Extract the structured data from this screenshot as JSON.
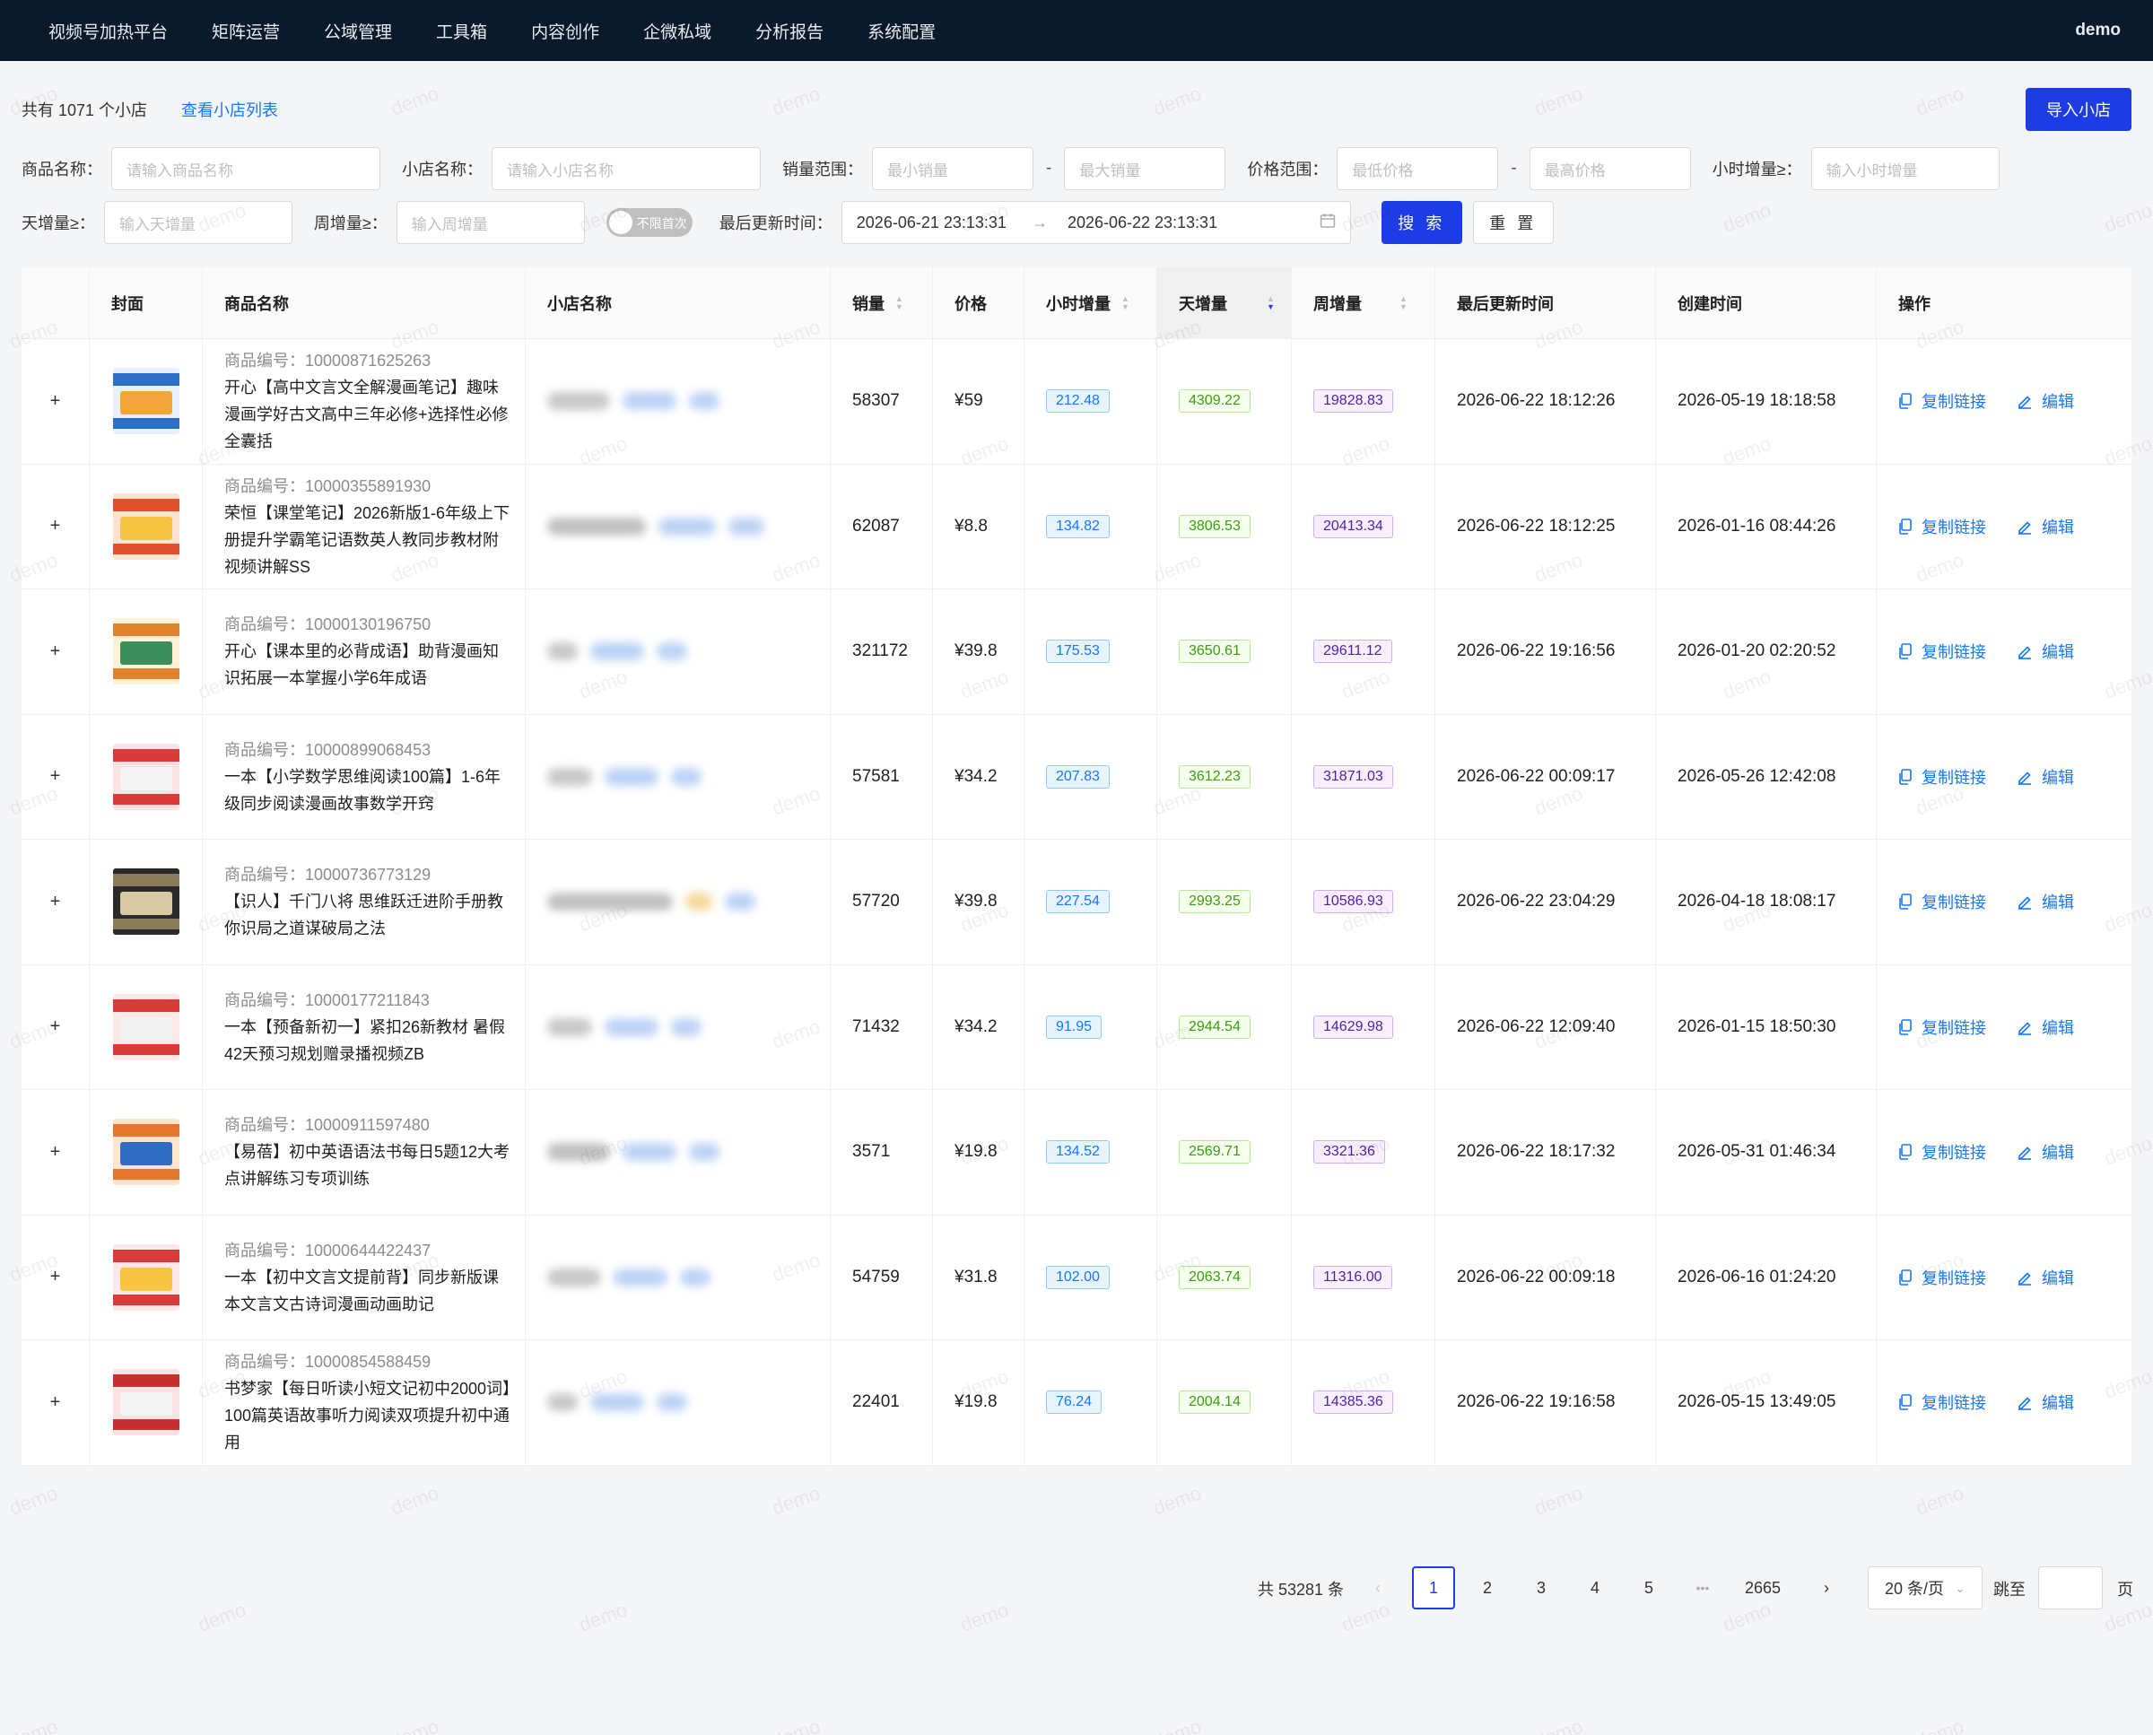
{
  "nav": {
    "items": [
      "视频号加热平台",
      "矩阵运营",
      "公域管理",
      "工具箱",
      "内容创作",
      "企微私域",
      "分析报告",
      "系统配置"
    ],
    "user": "demo"
  },
  "summary": {
    "count": "共有 1071 个小店",
    "link": "查看小店列表",
    "import_button": "导入小店"
  },
  "filters": {
    "product_name_label": "商品名称：",
    "product_name_placeholder": "请输入商品名称",
    "shop_name_label": "小店名称：",
    "shop_name_placeholder": "请输入小店名称",
    "sales_label": "销量范围：",
    "sales_min_placeholder": "最小销量",
    "sales_max_placeholder": "最大销量",
    "price_label": "价格范围：",
    "price_min_placeholder": "最低价格",
    "price_max_placeholder": "最高价格",
    "hour_label": "小时增量≥：",
    "hour_placeholder": "输入小时增量",
    "day_label": "天增量≥：",
    "day_placeholder": "输入天增量",
    "week_label": "周增量≥：",
    "week_placeholder": "输入周增量",
    "toggle_label": "不限首次",
    "update_label": "最后更新时间：",
    "date_start": "2026-06-21 23:13:31",
    "date_end": "2026-06-22 23:13:31",
    "date_arrow": "→",
    "search_button": "搜 索",
    "reset_button": "重 置"
  },
  "table": {
    "headers": {
      "cover": "封面",
      "product": "商品名称",
      "shop": "小店名称",
      "sales": "销量",
      "price": "价格",
      "hour": "小时增量",
      "day": "天增量",
      "week": "周增量",
      "updated": "最后更新时间",
      "created": "创建时间",
      "actions": "操作"
    },
    "action_copy": "复制链接",
    "action_edit": "编辑",
    "rows": [
      {
        "code": "商品编号：10000871625263",
        "name": "开心【高中文言文全解漫画笔记】趣味漫画学好古文高中三年必修+选择性必修全囊括",
        "sales": "58307",
        "price": "¥59",
        "hour": "212.48",
        "day": "4309.22",
        "week": "19828.83",
        "updated": "2026-06-22 18:12:26",
        "created": "2026-05-19 18:18:58"
      },
      {
        "code": "商品编号：10000355891930",
        "name": "荣恒【课堂笔记】2026新版1-6年级上下册提升学霸笔记语数英人教同步教材附视频讲解SS",
        "sales": "62087",
        "price": "¥8.8",
        "hour": "134.82",
        "day": "3806.53",
        "week": "20413.34",
        "updated": "2026-06-22 18:12:25",
        "created": "2026-01-16 08:44:26"
      },
      {
        "code": "商品编号：10000130196750",
        "name": "开心【课本里的必背成语】助背漫画知识拓展一本掌握小学6年成语",
        "sales": "321172",
        "price": "¥39.8",
        "hour": "175.53",
        "day": "3650.61",
        "week": "29611.12",
        "updated": "2026-06-22 19:16:56",
        "created": "2026-01-20 02:20:52"
      },
      {
        "code": "商品编号：10000899068453",
        "name": "一本【小学数学思维阅读100篇】1-6年级同步阅读漫画故事数学开窍",
        "sales": "57581",
        "price": "¥34.2",
        "hour": "207.83",
        "day": "3612.23",
        "week": "31871.03",
        "updated": "2026-06-22 00:09:17",
        "created": "2026-05-26 12:42:08"
      },
      {
        "code": "商品编号：10000736773129",
        "name": "【识人】千门八将 思维跃迁进阶手册教你识局之道谋破局之法",
        "sales": "57720",
        "price": "¥39.8",
        "hour": "227.54",
        "day": "2993.25",
        "week": "10586.93",
        "updated": "2026-06-22 23:04:29",
        "created": "2026-04-18 18:08:17"
      },
      {
        "code": "商品编号：10000177211843",
        "name": "一本【预备新初一】紧扣26新教材 暑假42天预习规划赠录播视频ZB",
        "sales": "71432",
        "price": "¥34.2",
        "hour": "91.95",
        "day": "2944.54",
        "week": "14629.98",
        "updated": "2026-06-22 12:09:40",
        "created": "2026-01-15 18:50:30"
      },
      {
        "code": "商品编号：10000911597480",
        "name": "【易蓓】初中英语语法书每日5题12大考点讲解练习专项训练",
        "sales": "3571",
        "price": "¥19.8",
        "hour": "134.52",
        "day": "2569.71",
        "week": "3321.36",
        "updated": "2026-06-22 18:17:32",
        "created": "2026-05-31 01:46:34"
      },
      {
        "code": "商品编号：10000644422437",
        "name": "一本【初中文言文提前背】同步新版课本文言文古诗词漫画动画助记",
        "sales": "54759",
        "price": "¥31.8",
        "hour": "102.00",
        "day": "2063.74",
        "week": "11316.00",
        "updated": "2026-06-22 00:09:18",
        "created": "2026-06-16 01:24:20"
      },
      {
        "code": "商品编号：10000854588459",
        "name": "书梦家【每日听读小短文记初中2000词】100篇英语故事听力阅读双项提升初中通用",
        "sales": "22401",
        "price": "¥19.8",
        "hour": "76.24",
        "day": "2004.14",
        "week": "14385.36",
        "updated": "2026-06-22 19:16:58",
        "created": "2026-05-15 13:49:05"
      }
    ]
  },
  "pagination": {
    "total": "共 53281 条",
    "pages": [
      "1",
      "2",
      "3",
      "4",
      "5"
    ],
    "ellipsis": "•••",
    "last": "2665",
    "page_size": "20 条/页",
    "jump_label": "跳至",
    "page_suffix": "页",
    "prev": "‹",
    "next": "›"
  },
  "colors": {
    "topnav": "#0b1a2b",
    "primary": "#1d3ce6",
    "link": "#1677ff"
  }
}
